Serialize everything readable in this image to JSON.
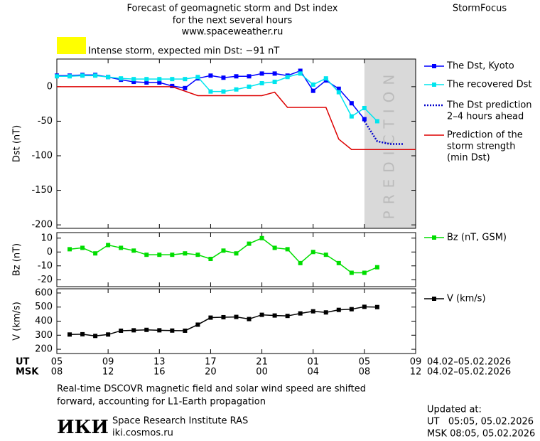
{
  "header": {
    "title_lines": [
      "Forecast of geomagnetic storm and Dst index",
      "for the next several hours",
      "www.spaceweather.ru"
    ],
    "brand": "StormFocus",
    "alert": "Intense storm, expected min Dst: −91 nT",
    "alert_color": "#ffff00"
  },
  "axis": {
    "ut_label": "UT",
    "msk_label": "MSK",
    "ut_range": "04.02–05.02.2026",
    "msk_range": "04.02–05.02.2026",
    "xlim": [
      0,
      28
    ],
    "xticks": [
      {
        "value": 0,
        "label": "05"
      },
      {
        "value": 4,
        "label": "09"
      },
      {
        "value": 8,
        "label": "13"
      },
      {
        "value": 12,
        "label": "17"
      },
      {
        "value": 16,
        "label": "21"
      },
      {
        "value": 20,
        "label": "01"
      },
      {
        "value": 24,
        "label": "05"
      },
      {
        "value": 28,
        "label": "09"
      }
    ],
    "msk_ticks": [
      "08",
      "12",
      "16",
      "20",
      "00",
      "04",
      "08",
      "12"
    ]
  },
  "chart_data": [
    {
      "type": "line",
      "ylabel": "Dst (nT)",
      "ylim": [
        -205,
        40
      ],
      "yticks": [
        0,
        -50,
        -100,
        -150,
        -200
      ],
      "prediction_zone": {
        "xlim": [
          24,
          28
        ],
        "label": "PREDICTION",
        "color": "#d9d9d9"
      },
      "series": [
        {
          "name": [
            "The Dst, Kyoto"
          ],
          "color": "#0000ff",
          "marker": true,
          "linestyle": "solid",
          "x": [
            0,
            1,
            2,
            3,
            4,
            5,
            6,
            7,
            8,
            9,
            10,
            11,
            12,
            13,
            14,
            15,
            16,
            17,
            18,
            19,
            20,
            21,
            22,
            23,
            24
          ],
          "values": [
            16,
            16,
            17,
            17,
            14,
            10,
            7,
            6,
            6,
            1,
            -2,
            12,
            16,
            13,
            15,
            15,
            19,
            19,
            16,
            23,
            -6,
            9,
            -3,
            -24,
            -47
          ]
        },
        {
          "name": [
            "The recovered Dst"
          ],
          "color": "#00e5ee",
          "marker": true,
          "linestyle": "solid",
          "x": [
            0,
            1,
            2,
            3,
            4,
            5,
            6,
            7,
            8,
            9,
            10,
            11,
            12,
            13,
            14,
            15,
            16,
            17,
            18,
            19,
            20,
            21,
            22,
            23,
            24,
            25
          ],
          "values": [
            15,
            15,
            16,
            16,
            14,
            12,
            11,
            11,
            11,
            11,
            11,
            14,
            -7,
            -7,
            -4,
            0,
            5,
            7,
            14,
            19,
            3,
            12,
            -8,
            -43,
            -31,
            -50
          ]
        },
        {
          "name": [
            "The Dst prediction",
            "2–4 hours ahead"
          ],
          "color": "#0000cc",
          "marker": false,
          "linestyle": "dotted",
          "x": [
            24,
            25,
            26,
            27
          ],
          "values": [
            -50,
            -79,
            -83,
            -83
          ]
        },
        {
          "name": [
            "Prediction of the",
            "storm strength",
            "(min Dst)"
          ],
          "color": "#dd0000",
          "marker": false,
          "linestyle": "solid",
          "x": [
            0,
            9,
            11,
            16,
            17,
            18,
            21,
            22,
            23,
            28
          ],
          "values": [
            0,
            0,
            -13,
            -13,
            -8,
            -30,
            -30,
            -76,
            -91,
            -91
          ]
        }
      ]
    },
    {
      "type": "line",
      "ylabel": "Bz (nT)",
      "ylim": [
        -25,
        14
      ],
      "yticks": [
        10,
        0,
        -10,
        -20
      ],
      "series": [
        {
          "name": [
            "Bz (nT, GSM)"
          ],
          "color": "#00dd00",
          "marker": true,
          "linestyle": "solid",
          "x": [
            1,
            2,
            3,
            4,
            5,
            6,
            7,
            8,
            9,
            10,
            11,
            12,
            13,
            14,
            15,
            16,
            17,
            18,
            19,
            20,
            21,
            22,
            23,
            24,
            25
          ],
          "values": [
            2,
            3,
            -1,
            5,
            3,
            1,
            -2,
            -2,
            -2,
            -1,
            -2,
            -5,
            1,
            -1,
            6,
            10,
            3,
            2,
            -8,
            0,
            -2,
            -8,
            -15,
            -15,
            -11
          ]
        }
      ]
    },
    {
      "type": "line",
      "ylabel": "V (km/s)",
      "ylim": [
        170,
        630
      ],
      "yticks": [
        200,
        300,
        400,
        500,
        600
      ],
      "series": [
        {
          "name": [
            "V (km/s)"
          ],
          "color": "#000000",
          "marker": true,
          "linestyle": "solid",
          "x": [
            1,
            2,
            3,
            4,
            5,
            6,
            7,
            8,
            9,
            10,
            11,
            12,
            13,
            14,
            15,
            16,
            17,
            18,
            19,
            20,
            21,
            22,
            23,
            24,
            25
          ],
          "values": [
            305,
            307,
            295,
            305,
            332,
            335,
            338,
            335,
            333,
            332,
            375,
            425,
            428,
            430,
            415,
            445,
            440,
            437,
            455,
            470,
            462,
            480,
            485,
            502,
            500
          ]
        }
      ]
    }
  ],
  "footer": {
    "note_lines": [
      "Real-time DSCOVR magnetic field and solar wind speed are shifted",
      "forward, accounting for L1-Earth propagation"
    ],
    "logo": "ИКИ",
    "institute": "Space Research Institute RAS",
    "site": "iki.cosmos.ru",
    "updated_label": "Updated at:",
    "updated_ut": "UT   05:05, 05.02.2026",
    "updated_msk": "MSK 08:05, 05.02.2026"
  }
}
